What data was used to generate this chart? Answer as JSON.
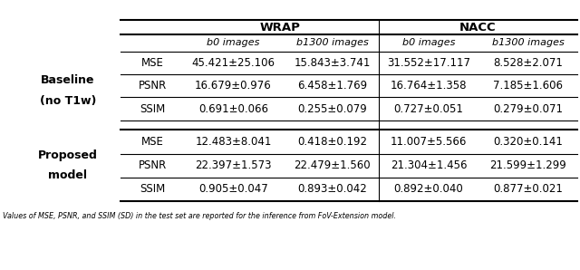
{
  "col_groups": [
    "WRAP",
    "NACC"
  ],
  "col_subheaders": [
    "b0 images",
    "b1300 images",
    "b0 images",
    "b1300 images"
  ],
  "row_group_labels": [
    [
      "Baseline",
      "(no T1w)"
    ],
    [
      "Proposed",
      "model"
    ]
  ],
  "metrics": [
    "MSE",
    "PSNR",
    "SSIM",
    "MSE",
    "PSNR",
    "SSIM"
  ],
  "data": [
    [
      "45.421±25.106",
      "15.843±3.741",
      "31.552±17.117",
      "8.528±2.071"
    ],
    [
      "16.679±0.976",
      "6.458±1.769",
      "16.764±1.358",
      "7.185±1.606"
    ],
    [
      "0.691±0.066",
      "0.255±0.079",
      "0.727±0.051",
      "0.279±0.071"
    ],
    [
      "12.483±8.041",
      "0.418±0.192",
      "11.007±5.566",
      "0.320±0.141"
    ],
    [
      "22.397±1.573",
      "22.479±1.560",
      "21.304±1.456",
      "21.599±1.299"
    ],
    [
      "0.905±0.047",
      "0.893±0.042",
      "0.892±0.040",
      "0.877±0.021"
    ]
  ],
  "footer": "Values of MSE, PSNR, and SSIM (SD) in the test set are reported for the inference from FoV-Extension model.",
  "background_color": "#ffffff"
}
